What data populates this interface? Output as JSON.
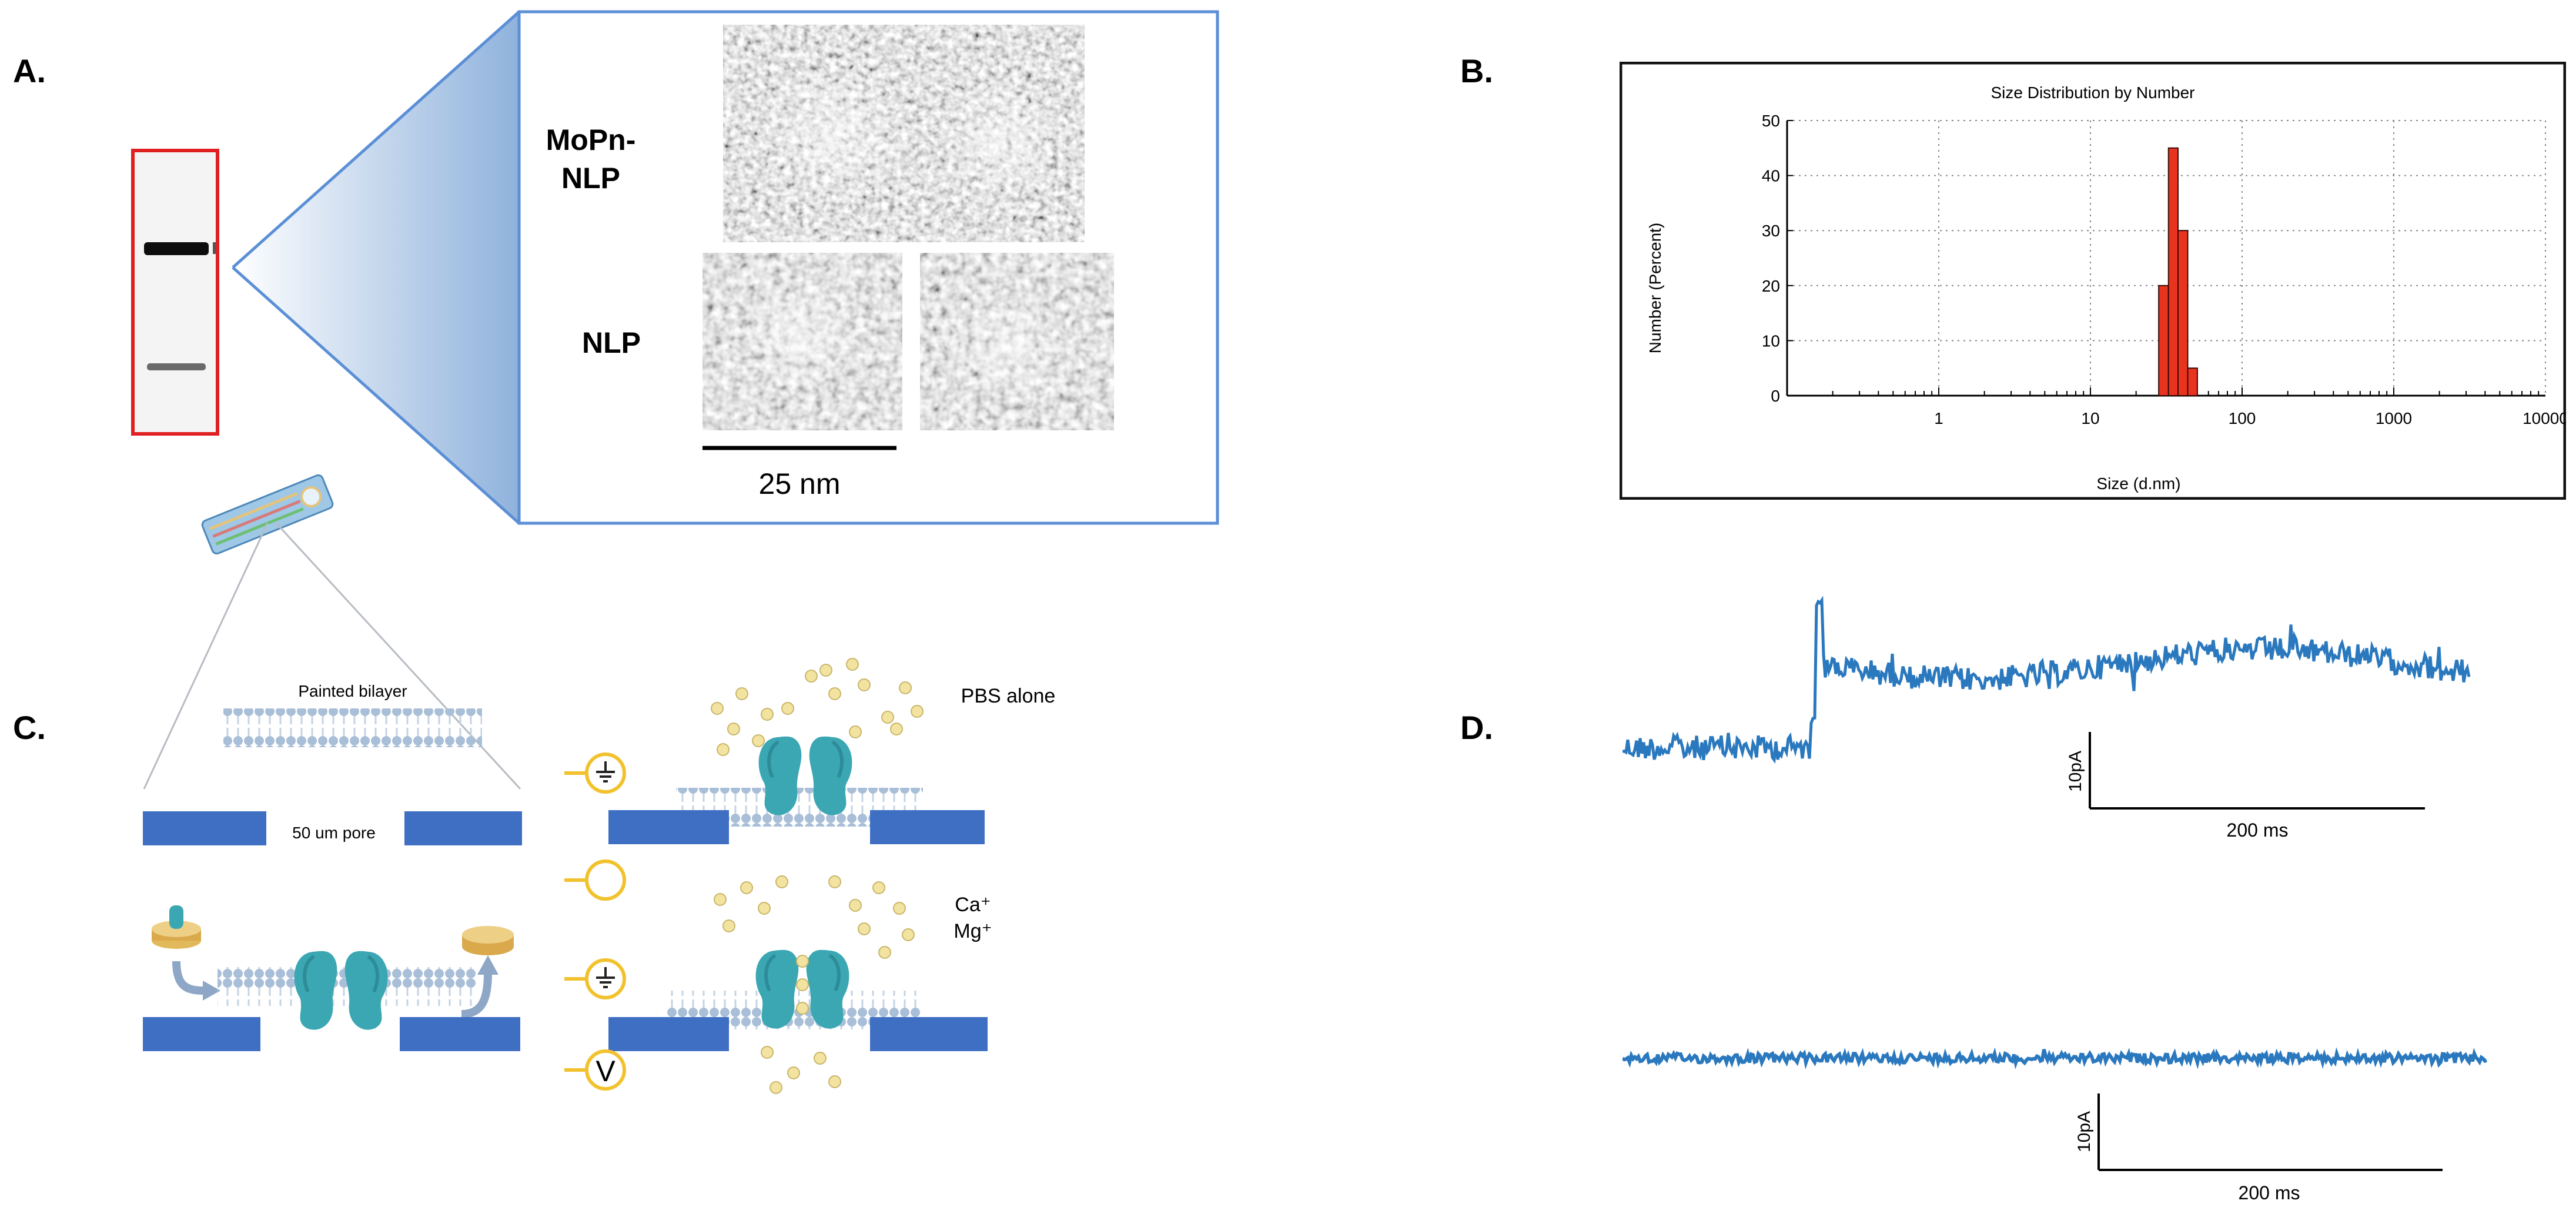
{
  "panels": {
    "a": "A.",
    "b": "B.",
    "c": "C.",
    "d": "D."
  },
  "panel_a": {
    "sample1": "MoPn-\nNLP",
    "sample2": "NLP",
    "scalebar": "25 nm",
    "colors": {
      "gel_box": "#e02020",
      "zoom_box": "#5b8fd6"
    }
  },
  "panel_c": {
    "painted_bilayer": "Painted bilayer",
    "pore": "50 um pore",
    "condition1": "PBS alone",
    "condition2_line1": "Ca⁺",
    "condition2_line2": "Mg⁺",
    "voltage_symbol": "V",
    "colors": {
      "substrate": "#3f6fc3",
      "protein": "#3ba7b3",
      "ion": "#f3e3a0",
      "electrode": "#f2c22e"
    }
  },
  "panel_d": {
    "top_scale_y": "10pA",
    "top_scale_x": "200 ms",
    "bottom_scale_y": "10pA",
    "bottom_scale_x": "200 ms",
    "colors": {
      "trace": "#2a78be"
    }
  },
  "chart_data": {
    "type": "bar",
    "title": "Size Distribution by Number",
    "xlabel": "Size (d.nm)",
    "ylabel": "Number (Percent)",
    "xscale": "log",
    "xlim": [
      0.1,
      10000
    ],
    "ylim": [
      0,
      50
    ],
    "xticks": [
      "1",
      "10",
      "100",
      "1000",
      "10000"
    ],
    "yticks": [
      "0",
      "10",
      "20",
      "30",
      "40",
      "50"
    ],
    "grid": true,
    "bar_color": "#e8331f",
    "bars": [
      {
        "x0": 28.2,
        "x1": 32.7,
        "value": 20
      },
      {
        "x0": 32.7,
        "x1": 37.8,
        "value": 45
      },
      {
        "x0": 37.8,
        "x1": 43.8,
        "value": 30
      },
      {
        "x0": 43.8,
        "x1": 50.7,
        "value": 5
      }
    ]
  }
}
